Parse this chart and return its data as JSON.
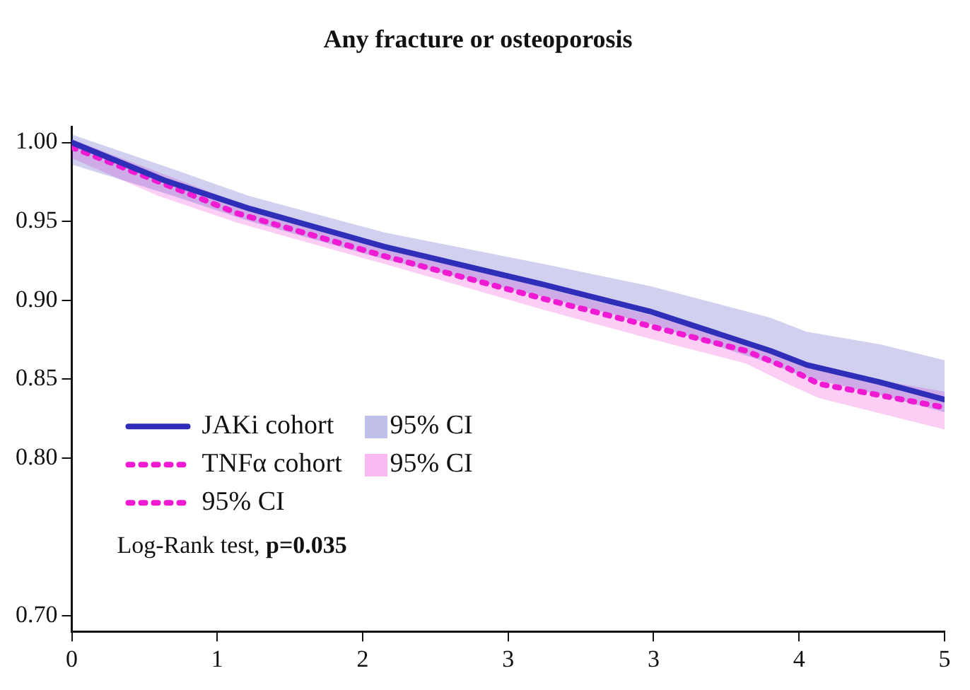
{
  "chart_data": {
    "type": "line",
    "title": "Any fracture or osteoporosis",
    "xlim": [
      0,
      5
    ],
    "xticks": [
      0,
      {
        "value": 0.8333,
        "label": "1"
      },
      {
        "value": 1.6667,
        "label": "2"
      },
      {
        "value": 2.5,
        "label": "3"
      },
      {
        "value": 3.3333,
        "label": "3"
      },
      {
        "value": 4.1667,
        "label": "4"
      },
      5
    ],
    "ylim": [
      0.69,
      1.01
    ],
    "yticks": [
      {
        "value": 0.7,
        "label": "0.70"
      },
      {
        "value": 0.8,
        "label": "0.80"
      },
      {
        "value": 0.85,
        "label": "0.85"
      },
      {
        "value": 0.9,
        "label": "0.90"
      },
      {
        "value": 0.95,
        "label": "0.95"
      },
      {
        "value": 1.0,
        "label": "1.00"
      }
    ],
    "grid": false,
    "legend": "bottom left",
    "marker": "none",
    "series": [
      {
        "name": "JAKi cohort",
        "color": "#2e2eb8",
        "line_style": "solid",
        "x": [
          0,
          0.53,
          1.02,
          1.79,
          2.7,
          3.31,
          4.0,
          4.21,
          4.63,
          5
        ],
        "values": [
          1.0,
          0.976,
          0.958,
          0.934,
          0.91,
          0.893,
          0.868,
          0.859,
          0.848,
          0.837
        ],
        "upper": [
          1.005,
          0.985,
          0.966,
          0.943,
          0.923,
          0.909,
          0.889,
          0.88,
          0.872,
          0.862
        ],
        "lower": [
          0.986,
          0.968,
          0.95,
          0.926,
          0.902,
          0.885,
          0.86,
          0.851,
          0.84,
          0.829
        ]
      },
      {
        "name": "TNFα cohort",
        "color": "#f01ad2",
        "line_style": "dotted",
        "x": [
          0,
          0.5,
          0.95,
          1.79,
          2.7,
          3.3,
          3.86,
          4.1,
          4.28,
          5
        ],
        "values": [
          0.997,
          0.975,
          0.955,
          0.928,
          0.901,
          0.884,
          0.868,
          0.857,
          0.847,
          0.832
        ],
        "upper": [
          1.002,
          0.981,
          0.962,
          0.935,
          0.908,
          0.891,
          0.875,
          0.865,
          0.856,
          0.842
        ],
        "lower": [
          0.99,
          0.966,
          0.949,
          0.923,
          0.894,
          0.876,
          0.86,
          0.847,
          0.838,
          0.818
        ]
      }
    ],
    "annotations": [
      "95% CI",
      "95% CI",
      "95% CI",
      "Log-Rank test, p=0.035"
    ]
  }
}
